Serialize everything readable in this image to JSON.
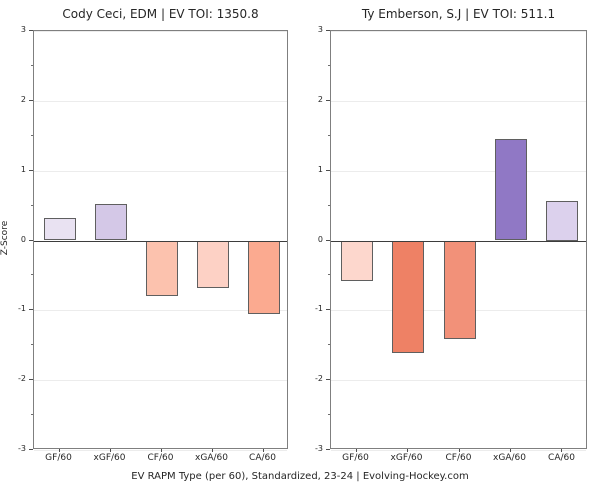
{
  "footer": "EV RAPM Type (per 60), Standardized, 23-24    |    Evolving-Hockey.com",
  "axis": {
    "ylabel": "Z-Score",
    "ymin": -3,
    "ymax": 3,
    "major_ticks": [
      3,
      2,
      1,
      0,
      -1,
      -2,
      -3
    ],
    "minor_ticks": [
      2.5,
      1.5,
      0.5,
      -0.5,
      -1.5,
      -2.5
    ]
  },
  "style": {
    "grid_color": "#ececec",
    "zero_line_color": "#3d3d3d",
    "spine_color": "#7f7f7f",
    "bar_stroke": "#5f5f5f",
    "background": "#ffffff",
    "text_color": "#262626"
  },
  "chart_data": [
    {
      "type": "bar",
      "title": "Cody Ceci, EDM  |  EV TOI: 1350.8",
      "player": "Cody Ceci",
      "team": "EDM",
      "ev_toi": 1350.8,
      "categories": [
        "GF/60",
        "xGF/60",
        "CF/60",
        "xGA/60",
        "CA/60"
      ],
      "values": [
        0.32,
        0.52,
        -0.79,
        -0.67,
        -1.05
      ],
      "bar_colors": [
        "#e9e2f2",
        "#d4c8e7",
        "#fcc2ae",
        "#fdd1c5",
        "#fbaa90"
      ],
      "xlabel": "",
      "ylabel": "Z-Score",
      "ylim": [
        -3,
        3
      ],
      "grid": true,
      "legend": "none"
    },
    {
      "type": "bar",
      "title": "Ty Emberson, S.J  |  EV TOI: 511.1",
      "player": "Ty Emberson",
      "team": "S.J",
      "ev_toi": 511.1,
      "categories": [
        "GF/60",
        "xGF/60",
        "CF/60",
        "xGA/60",
        "CA/60"
      ],
      "values": [
        -0.57,
        -1.61,
        -1.4,
        1.45,
        0.57
      ],
      "bar_colors": [
        "#fdd7cd",
        "#ee8165",
        "#f29179",
        "#9078c5",
        "#dcd1ed"
      ],
      "xlabel": "",
      "ylabel": "",
      "ylim": [
        -3,
        3
      ],
      "grid": true,
      "legend": "none"
    }
  ]
}
